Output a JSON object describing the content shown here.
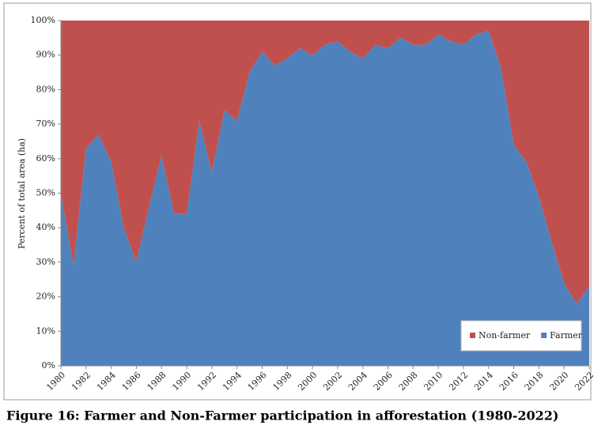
{
  "chart_data": {
    "type": "stacked_area",
    "caption": "Figure 16: Farmer and Non-Farmer participation in afforestation (1980-2022)",
    "ylabel": "Percent of total area (ha)",
    "x": [
      1980,
      1981,
      1982,
      1983,
      1984,
      1985,
      1986,
      1987,
      1988,
      1989,
      1990,
      1991,
      1992,
      1993,
      1994,
      1995,
      1996,
      1997,
      1998,
      1999,
      2000,
      2001,
      2002,
      2003,
      2004,
      2005,
      2006,
      2007,
      2008,
      2009,
      2010,
      2011,
      2012,
      2013,
      2014,
      2015,
      2016,
      2017,
      2018,
      2019,
      2020,
      2021,
      2022
    ],
    "xlim": [
      1980,
      2022
    ],
    "xticks": [
      1980,
      1982,
      1984,
      1986,
      1988,
      1990,
      1992,
      1994,
      1996,
      1998,
      2000,
      2002,
      2004,
      2006,
      2008,
      2010,
      2012,
      2014,
      2016,
      2018,
      2020,
      2022
    ],
    "ylim": [
      0,
      100
    ],
    "yticks": [
      {
        "value": 0,
        "label": "0%"
      },
      {
        "value": 10,
        "label": "10%"
      },
      {
        "value": 20,
        "label": "20%"
      },
      {
        "value": 30,
        "label": "30%"
      },
      {
        "value": 40,
        "label": "40%"
      },
      {
        "value": 50,
        "label": "50%"
      },
      {
        "value": 60,
        "label": "60%"
      },
      {
        "value": 70,
        "label": "70%"
      },
      {
        "value": 80,
        "label": "80%"
      },
      {
        "value": 90,
        "label": "90%"
      },
      {
        "value": 100,
        "label": "100%"
      }
    ],
    "legend": "bottom-right",
    "series": [
      {
        "name": "Non-farmer",
        "color": "#c0504d",
        "values": [
          50,
          71,
          37,
          33,
          41,
          60,
          70,
          54,
          39,
          56,
          56,
          29,
          44,
          26,
          29,
          15,
          9,
          13,
          11,
          8,
          10,
          7,
          6,
          9,
          11,
          7,
          8,
          5,
          7,
          7,
          4,
          6,
          7,
          4,
          3,
          14,
          36,
          41,
          51,
          64,
          76,
          82,
          77
        ]
      },
      {
        "name": "Farmer",
        "color": "#4f81bd",
        "values": [
          50,
          29,
          63,
          67,
          59,
          40,
          30,
          46,
          61,
          44,
          44,
          71,
          56,
          74,
          71,
          85,
          91,
          87,
          89,
          92,
          90,
          93,
          94,
          91,
          89,
          93,
          92,
          95,
          93,
          93,
          96,
          94,
          93,
          96,
          97,
          86,
          64,
          59,
          49,
          36,
          24,
          18,
          23
        ]
      }
    ]
  }
}
